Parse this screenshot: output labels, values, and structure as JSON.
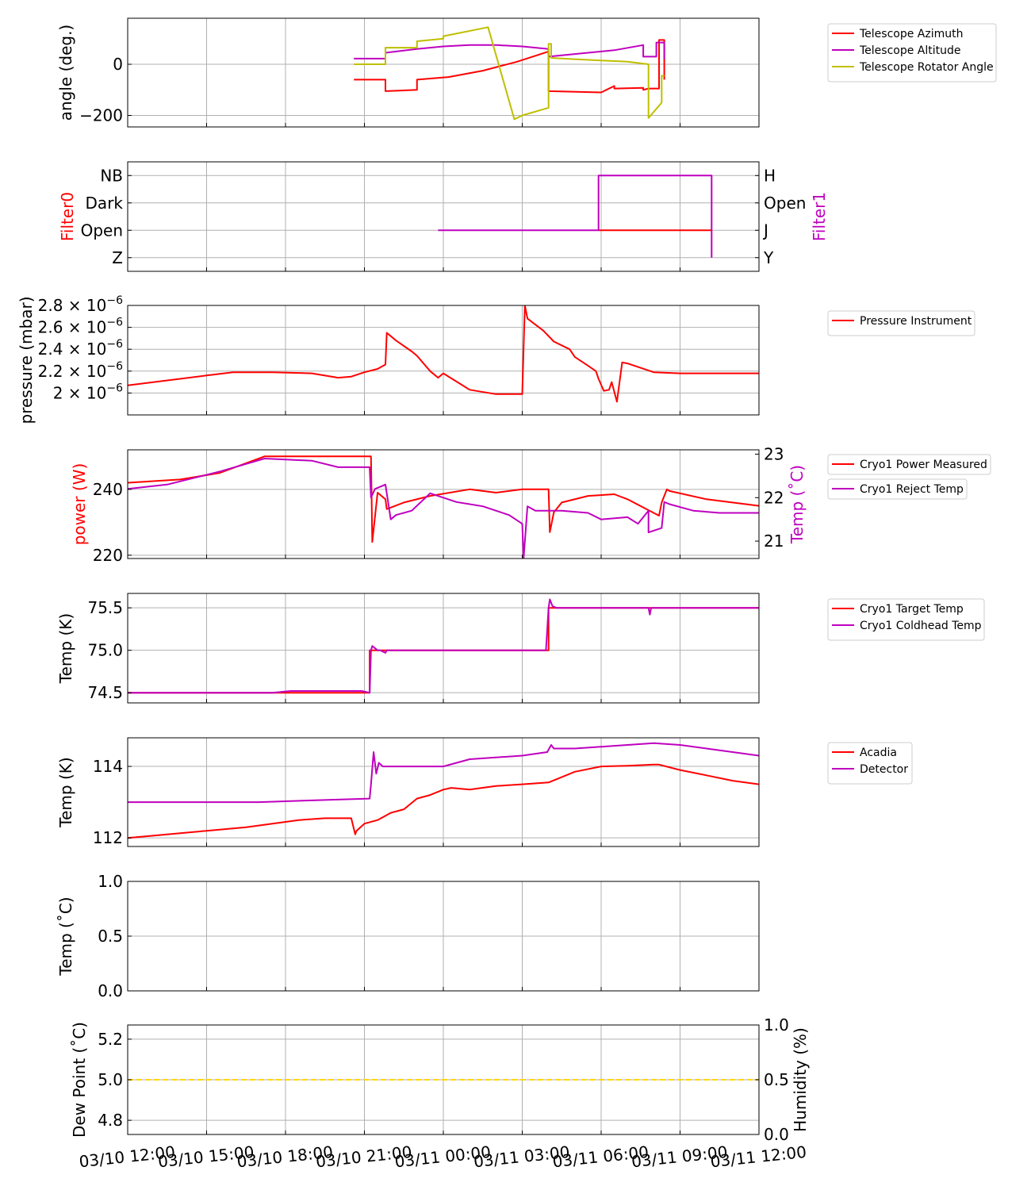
{
  "colors": {
    "red": "#ff0000",
    "magenta": "#bf00bf",
    "olive": "#bfbf00",
    "gold": "#ffd700",
    "grid": "#b0b0b0"
  },
  "x_axis": {
    "ticks": [
      "03/10 12:00",
      "03/10 15:00",
      "03/10 18:00",
      "03/10 21:00",
      "03/11 00:00",
      "03/11 03:00",
      "03/11 06:00",
      "03/11 09:00",
      "03/11 12:00"
    ],
    "range_hours": [
      0,
      24
    ]
  },
  "chart_data": [
    {
      "type": "line",
      "id": "angles",
      "ylabel": "angle (deg.)",
      "ylim": [
        -245,
        180
      ],
      "yticks": [
        {
          "v": 0,
          "label": "0"
        },
        {
          "v": -200,
          "label": "−200"
        }
      ],
      "series": [
        {
          "name": "Telescope Azimuth",
          "color": "#ff0000",
          "x": [
            8.6,
            9.8,
            9.8,
            11.0,
            11.0,
            12.2,
            13.5,
            14.8,
            16.0,
            16.0,
            18.0,
            18.5,
            18.5,
            19.6,
            19.6,
            19.8,
            20.2,
            20.2,
            20.4,
            20.4
          ],
          "y": [
            -60,
            -60,
            -105,
            -100,
            -60,
            -50,
            -25,
            10,
            50,
            -105,
            -110,
            -85,
            -95,
            -92,
            -100,
            -95,
            -95,
            95,
            95,
            -60
          ]
        },
        {
          "name": "Telescope Altitude",
          "color": "#bf00bf",
          "x": [
            8.6,
            9.8,
            9.8,
            11.0,
            12.0,
            13.0,
            14.0,
            15.0,
            16.0,
            16.0,
            17.0,
            18.5,
            19.6,
            19.6,
            20.1,
            20.1,
            20.4,
            20.4
          ],
          "y": [
            22,
            22,
            45,
            60,
            70,
            75,
            75,
            70,
            60,
            30,
            40,
            55,
            75,
            30,
            30,
            85,
            85,
            20
          ]
        },
        {
          "name": "Telescope Rotator Angle",
          "color": "#bfbf00",
          "x": [
            8.6,
            9.8,
            9.8,
            11.0,
            11.0,
            12.0,
            12.0,
            13.7,
            13.7,
            14.7,
            15.0,
            16.0,
            16.0,
            16.1,
            16.1,
            17.0,
            18.0,
            19.0,
            19.8,
            19.8,
            20.3,
            20.3,
            20.4
          ],
          "y": [
            0,
            0,
            65,
            65,
            90,
            100,
            110,
            145,
            145,
            -215,
            -200,
            -170,
            80,
            80,
            25,
            20,
            15,
            10,
            0,
            -210,
            -150,
            -45,
            -45
          ]
        }
      ],
      "legend": [
        "Telescope Azimuth",
        "Telescope Altitude",
        "Telescope Rotator Angle"
      ]
    },
    {
      "type": "step",
      "id": "filters",
      "ylabel_left": "Filter0",
      "ylabel_right": "Filter1",
      "ylim": [
        -0.5,
        3.5
      ],
      "left_ticks": [
        {
          "v": 3,
          "label": "NB"
        },
        {
          "v": 2,
          "label": "Dark"
        },
        {
          "v": 1,
          "label": "Open"
        },
        {
          "v": 0,
          "label": "Z"
        }
      ],
      "right_ticks": [
        {
          "v": 3,
          "label": "H"
        },
        {
          "v": 2,
          "label": "Open"
        },
        {
          "v": 1,
          "label": "J"
        },
        {
          "v": 0,
          "label": "Y"
        }
      ],
      "series": [
        {
          "name": "Filter0",
          "color": "#ff0000",
          "x": [
            17.9,
            22.2
          ],
          "y": [
            1,
            1
          ]
        },
        {
          "name": "Filter1",
          "color": "#bf00bf",
          "x": [
            11.8,
            17.9,
            17.9,
            22.2,
            22.2
          ],
          "y": [
            1,
            1,
            3,
            3,
            0
          ]
        }
      ]
    },
    {
      "type": "line",
      "id": "pressure",
      "ylabel": "pressure (mbar)",
      "ylim": [
        1.8,
        2.8
      ],
      "yticks": [
        {
          "v": 2.8,
          "base": "2.8 × 10",
          "exp": "−6"
        },
        {
          "v": 2.6,
          "base": "2.6 × 10",
          "exp": "−6"
        },
        {
          "v": 2.4,
          "base": "2.4 × 10",
          "exp": "−6"
        },
        {
          "v": 2.2,
          "base": "2.2 × 10",
          "exp": "−6"
        },
        {
          "v": 2.0,
          "base": "2 × 10",
          "exp": "−6"
        }
      ],
      "series": [
        {
          "name": "Pressure Instrument",
          "color": "#ff0000",
          "x": [
            0,
            3,
            4,
            5.5,
            7,
            8,
            8.5,
            9,
            9.5,
            9.8,
            9.85,
            10.2,
            10.8,
            11.0,
            11.5,
            11.8,
            12.0,
            12.6,
            13.0,
            14.0,
            14.5,
            15.0,
            15.1,
            15.2,
            15.8,
            16.2,
            16.8,
            17.0,
            17.5,
            17.8,
            17.9,
            18.1,
            18.3,
            18.4,
            18.6,
            18.8,
            19.0,
            20.0,
            21.0,
            24
          ],
          "y": [
            2.07,
            2.16,
            2.19,
            2.19,
            2.18,
            2.14,
            2.15,
            2.19,
            2.22,
            2.26,
            2.55,
            2.48,
            2.38,
            2.34,
            2.2,
            2.14,
            2.18,
            2.09,
            2.03,
            1.99,
            1.99,
            1.99,
            2.8,
            2.68,
            2.57,
            2.47,
            2.4,
            2.33,
            2.25,
            2.2,
            2.13,
            2.02,
            2.03,
            2.1,
            1.92,
            2.28,
            2.27,
            2.19,
            2.18,
            2.18
          ]
        }
      ],
      "legend": [
        "Pressure Instrument"
      ]
    },
    {
      "type": "line",
      "id": "cryo-power",
      "ylabel_left": "power (W)",
      "ylabel_right": "Temp (˚C)",
      "ylim_left": [
        219,
        252
      ],
      "ylim_right": [
        20.6,
        23.1
      ],
      "left_ticks": [
        {
          "v": 240,
          "label": "240"
        },
        {
          "v": 220,
          "label": "220"
        }
      ],
      "right_ticks": [
        {
          "v": 23,
          "label": "23"
        },
        {
          "v": 22,
          "label": "22"
        },
        {
          "v": 21,
          "label": "21"
        }
      ],
      "series": [
        {
          "name": "Cryo1 Power Measured",
          "color": "#ff0000",
          "axis": "left",
          "x": [
            0,
            2,
            3.5,
            5.2,
            9.2,
            9.25,
            9.3,
            9.5,
            9.8,
            9.85,
            10.5,
            11.5,
            13.0,
            14.0,
            15.0,
            16.0,
            16.05,
            16.2,
            16.5,
            17.5,
            18.5,
            19.0,
            20.2,
            20.3,
            20.5,
            20.6,
            22,
            24
          ],
          "y": [
            242,
            243,
            245,
            250,
            250,
            250,
            224,
            239,
            237,
            234,
            236,
            238,
            240,
            239,
            240,
            240,
            227,
            233,
            236,
            238,
            238.5,
            237,
            232,
            236,
            240,
            239.5,
            237,
            235
          ]
        },
        {
          "name": "Cryo1 Reject Temp",
          "color": "#bf00bf",
          "axis": "right",
          "x": [
            0,
            1.5,
            3.5,
            5.2,
            7,
            8,
            9.2,
            9.25,
            9.4,
            9.8,
            10.0,
            10.2,
            10.8,
            11.5,
            12.5,
            13.5,
            14.0,
            14.5,
            15.0,
            15.05,
            15.2,
            15.5,
            16.5,
            17.5,
            18.0,
            19.0,
            19.4,
            19.8,
            19.8,
            20.3,
            20.4,
            20.6,
            21.5,
            22.5,
            24
          ],
          "y": [
            22.2,
            22.3,
            22.6,
            22.9,
            22.85,
            22.7,
            22.7,
            22.0,
            22.2,
            22.3,
            21.5,
            21.6,
            21.7,
            22.1,
            21.9,
            21.8,
            21.7,
            21.6,
            21.4,
            20.6,
            21.8,
            21.7,
            21.7,
            21.65,
            21.5,
            21.55,
            21.4,
            21.7,
            21.2,
            21.3,
            21.9,
            21.85,
            21.7,
            21.65,
            21.65
          ]
        }
      ],
      "legend": [
        "Cryo1 Power Measured",
        "Cryo1 Reject Temp"
      ]
    },
    {
      "type": "line",
      "id": "cryo-temps",
      "ylabel": "Temp (K)",
      "ylim": [
        74.38,
        75.67
      ],
      "yticks": [
        {
          "v": 75.5,
          "label": "75.5"
        },
        {
          "v": 75.0,
          "label": "75.0"
        },
        {
          "v": 74.5,
          "label": "74.5"
        }
      ],
      "series": [
        {
          "name": "Cryo1 Target Temp",
          "color": "#ff0000",
          "x": [
            0,
            9.2,
            9.2,
            16.0,
            16.0,
            24
          ],
          "y": [
            74.5,
            74.5,
            75.0,
            75.0,
            75.5,
            75.5
          ]
        },
        {
          "name": "Cryo1 Coldhead Temp",
          "color": "#bf00bf",
          "x": [
            0,
            5.5,
            6.2,
            8.9,
            9.2,
            9.25,
            9.3,
            9.5,
            9.6,
            9.8,
            9.85,
            9.9,
            13.5,
            15.9,
            16.0,
            16.05,
            16.15,
            16.3,
            19.8,
            19.85,
            19.9,
            24
          ],
          "y": [
            74.5,
            74.5,
            74.52,
            74.52,
            74.5,
            75.0,
            75.05,
            75.0,
            75.0,
            74.97,
            75.0,
            75.0,
            75.0,
            75.0,
            75.5,
            75.6,
            75.52,
            75.5,
            75.5,
            75.42,
            75.5,
            75.5
          ]
        }
      ],
      "legend": [
        "Cryo1 Target Temp",
        "Cryo1 Coldhead Temp"
      ]
    },
    {
      "type": "line",
      "id": "detector-temps",
      "ylabel": "Temp (K)",
      "ylim": [
        111.76,
        114.8
      ],
      "yticks": [
        {
          "v": 114,
          "label": "114"
        },
        {
          "v": 112,
          "label": "112"
        }
      ],
      "series": [
        {
          "name": "Acadia",
          "color": "#ff0000",
          "x": [
            0,
            1.5,
            3,
            4.5,
            5.5,
            6.5,
            7.5,
            8.5,
            8.65,
            8.7,
            9.0,
            9.5,
            10.0,
            10.5,
            11.0,
            11.5,
            12.0,
            12.3,
            13.0,
            14.0,
            15.0,
            16.0,
            16.5,
            17.0,
            18.0,
            19.0,
            20.0,
            20.2,
            21.0,
            22.0,
            23.0,
            24
          ],
          "y": [
            112.0,
            112.1,
            112.2,
            112.3,
            112.4,
            112.5,
            112.55,
            112.55,
            112.1,
            112.2,
            112.4,
            112.5,
            112.7,
            112.8,
            113.1,
            113.2,
            113.35,
            113.4,
            113.35,
            113.45,
            113.5,
            113.55,
            113.7,
            113.85,
            114.0,
            114.02,
            114.05,
            114.05,
            113.9,
            113.75,
            113.6,
            113.5
          ]
        },
        {
          "name": "Detector",
          "color": "#bf00bf",
          "x": [
            0,
            5,
            7,
            9.2,
            9.25,
            9.35,
            9.45,
            9.55,
            9.7,
            10,
            11,
            12,
            13,
            15,
            15.95,
            16.1,
            16.2,
            17,
            18,
            19,
            20,
            21,
            22,
            23,
            24
          ],
          "y": [
            113.0,
            113.0,
            113.05,
            113.1,
            113.5,
            114.4,
            113.8,
            114.1,
            114.0,
            114.0,
            114.0,
            114.0,
            114.2,
            114.3,
            114.4,
            114.6,
            114.5,
            114.5,
            114.55,
            114.6,
            114.65,
            114.6,
            114.5,
            114.4,
            114.3
          ]
        }
      ],
      "legend": [
        "Acadia",
        "Detector"
      ]
    },
    {
      "type": "line",
      "id": "ambient-temp",
      "ylabel": "Temp (˚C)",
      "ylim": [
        0,
        1
      ],
      "yticks": [
        {
          "v": 1.0,
          "label": "1.0"
        },
        {
          "v": 0.5,
          "label": "0.5"
        },
        {
          "v": 0.0,
          "label": "0.0"
        }
      ],
      "series": []
    },
    {
      "type": "line",
      "id": "dewpoint",
      "ylabel_left": "Dew Point (˚C)",
      "ylabel_right": "Humidity (%)",
      "ylim_left": [
        4.73,
        5.27
      ],
      "ylim_right": [
        0,
        1
      ],
      "left_ticks": [
        {
          "v": 5.2,
          "label": "5.2"
        },
        {
          "v": 5.0,
          "label": "5.0"
        },
        {
          "v": 4.8,
          "label": "4.8"
        }
      ],
      "right_ticks": [
        {
          "v": 1.0,
          "label": "1.0"
        },
        {
          "v": 0.5,
          "label": "0.5"
        },
        {
          "v": 0.0,
          "label": "0.0"
        }
      ],
      "series": [
        {
          "name": "Dew Point",
          "color": "#ffd700",
          "axis": "left",
          "style": "dashed",
          "x": [
            0,
            24
          ],
          "y": [
            5.0,
            5.0
          ]
        }
      ]
    }
  ]
}
